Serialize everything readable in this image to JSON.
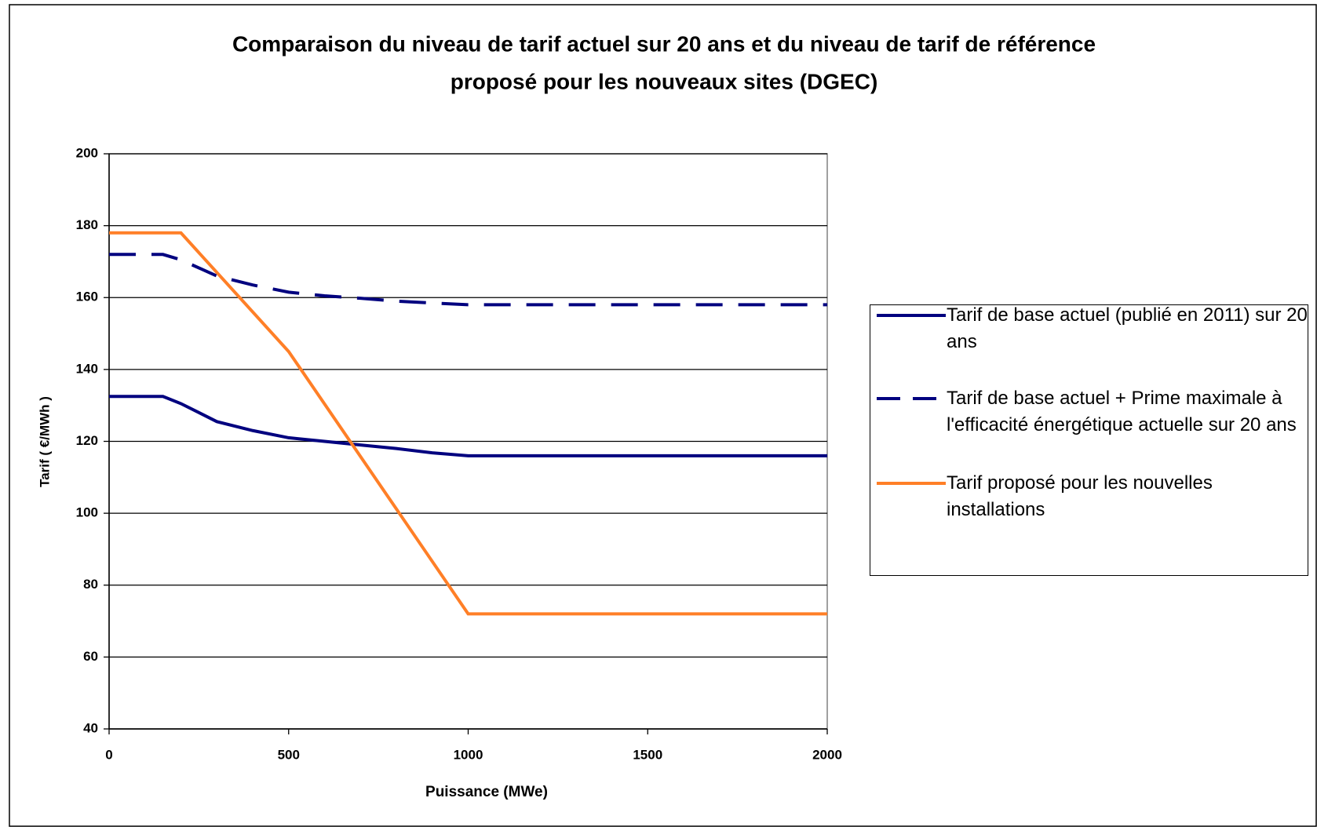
{
  "chart_data": {
    "type": "line",
    "title": [
      "Comparaison du niveau de tarif actuel sur 20 ans et du niveau de tarif de référence",
      "proposé pour les nouveaux sites (DGEC)"
    ],
    "x_label": "Puissance (MWe)",
    "y_label": "Tarif ( €/MWh )",
    "xlim": [
      0,
      2000
    ],
    "xticks": [
      0,
      500,
      1000,
      1500,
      2000
    ],
    "ylim": [
      40,
      200
    ],
    "yticks": [
      40,
      60,
      80,
      100,
      120,
      140,
      160,
      180,
      200
    ],
    "grid": true,
    "legend": "right",
    "series": [
      {
        "name": "Tarif de base actuel (publié en 2011) sur 20 ans",
        "color": "#00007f",
        "style": "solid",
        "x": [
          0,
          150,
          200,
          300,
          400,
          500,
          600,
          700,
          800,
          900,
          1000,
          2000
        ],
        "values": [
          132.5,
          132.5,
          130.5,
          125.5,
          123,
          121,
          120,
          119,
          118,
          116.8,
          116,
          116
        ]
      },
      {
        "name": "Tarif de base actuel + Prime maximale à l'efficacité énergétique actuelle sur 20 ans",
        "color": "#00007f",
        "style": "dashed",
        "x": [
          0,
          150,
          200,
          300,
          400,
          500,
          600,
          700,
          800,
          900,
          1000,
          2000
        ],
        "values": [
          172,
          172,
          170.5,
          166,
          163.5,
          161.5,
          160.5,
          159.8,
          159,
          158.5,
          158,
          158
        ]
      },
      {
        "name": "Tarif proposé pour les nouvelles installations",
        "color": "#ff7f27",
        "style": "solid",
        "x": [
          0,
          200,
          500,
          1000,
          2000
        ],
        "values": [
          178,
          178,
          145,
          72,
          72
        ]
      }
    ]
  }
}
